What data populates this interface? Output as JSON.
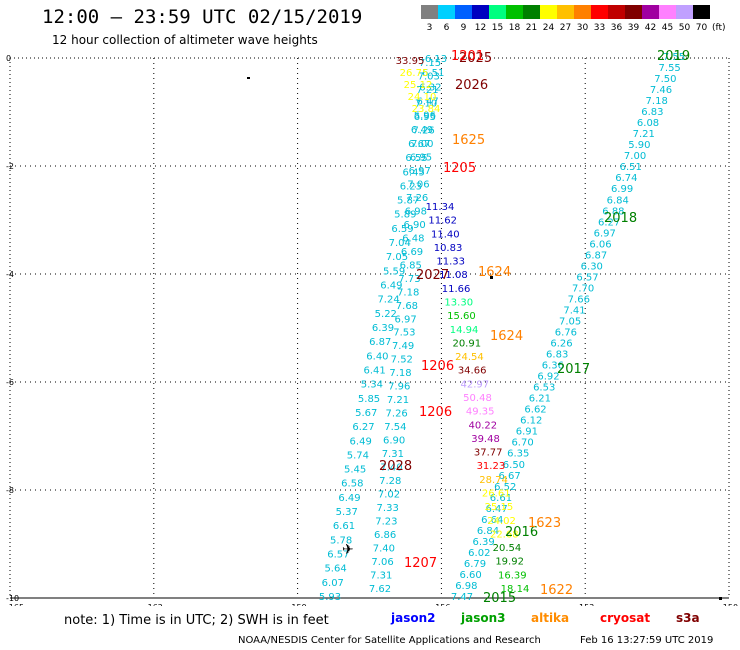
{
  "header": {
    "title": "12:00 — 23:59 UTC 02/15/2019",
    "subtitle": "12 hour collection of altimeter wave heights"
  },
  "legend": {
    "unit": "(ft)",
    "items": [
      {
        "label": "3",
        "color": "#808080"
      },
      {
        "label": "6",
        "color": "#00d0ff"
      },
      {
        "label": "9",
        "color": "#0060ff"
      },
      {
        "label": "12",
        "color": "#0000c0"
      },
      {
        "label": "15",
        "color": "#00ff80"
      },
      {
        "label": "18",
        "color": "#00c000"
      },
      {
        "label": "21",
        "color": "#008000"
      },
      {
        "label": "24",
        "color": "#ffff00"
      },
      {
        "label": "27",
        "color": "#ffc000"
      },
      {
        "label": "30",
        "color": "#ff8000"
      },
      {
        "label": "33",
        "color": "#ff0000"
      },
      {
        "label": "36",
        "color": "#c00000"
      },
      {
        "label": "39",
        "color": "#800000"
      },
      {
        "label": "42",
        "color": "#a000a0"
      },
      {
        "label": "45",
        "color": "#ff80ff"
      },
      {
        "label": "50",
        "color": "#c0a0ff"
      },
      {
        "label": "70",
        "color": "#000000"
      }
    ]
  },
  "axes": {
    "lon_ticks": [
      "-165",
      "-162",
      "-159",
      "-156",
      "-153",
      "-150"
    ],
    "lat_ticks": [
      "0",
      "-2",
      "-4",
      "-6",
      "-8",
      "-10"
    ]
  },
  "tracks": [
    {
      "name": "2019",
      "color": "#008000"
    },
    {
      "name": "2018",
      "color": "#008000"
    },
    {
      "name": "2017",
      "color": "#008000"
    },
    {
      "name": "2016",
      "color": "#008000"
    },
    {
      "name": "2015",
      "color": "#008000"
    },
    {
      "name": "2025",
      "color": "#800000"
    },
    {
      "name": "2026",
      "color": "#800000"
    },
    {
      "name": "2027",
      "color": "#800000"
    },
    {
      "name": "2028",
      "color": "#800000"
    },
    {
      "name": "1201",
      "color": "#ff0000"
    },
    {
      "name": "1205",
      "color": "#ff0000"
    },
    {
      "name": "1206",
      "color": "#ff0000"
    },
    {
      "name": "1206",
      "color": "#ff0000"
    },
    {
      "name": "1207",
      "color": "#ff0000"
    },
    {
      "name": "1625",
      "color": "#ff8000"
    },
    {
      "name": "1624",
      "color": "#ff8000"
    },
    {
      "name": "1624",
      "color": "#ff8000"
    },
    {
      "name": "1623",
      "color": "#ff8000"
    },
    {
      "name": "1622",
      "color": "#ff8000"
    }
  ],
  "readings": {
    "jason2_right": [
      "7.55",
      "7.55",
      "7.50",
      "7.46",
      "7.18",
      "6.83",
      "6.08",
      "7.21",
      "5.90",
      "7.00",
      "6.51",
      "6.74",
      "6.99",
      "6.84",
      "6.88",
      "6.27",
      "6.97",
      "6.06",
      "6.87",
      "6.30",
      "6.57",
      "7.70",
      "7.66",
      "7.41",
      "7.05",
      "6.76",
      "6.26",
      "6.83",
      "6.36",
      "6.92",
      "6.53",
      "6.21",
      "6.62",
      "6.12",
      "6.91",
      "6.70",
      "6.35",
      "6.50",
      "6.67",
      "6.52",
      "6.61",
      "6.47",
      "6.64",
      "6.84",
      "6.39",
      "6.02",
      "6.79",
      "6.60",
      "6.98",
      "7.47"
    ],
    "jason2_left": [
      "5.93",
      "6.07",
      "5.64",
      "6.57",
      "5.78",
      "6.61",
      "5.37",
      "6.49",
      "6.58",
      "5.45",
      "5.74",
      "6.49",
      "6.27",
      "5.67",
      "5.85",
      "5.34",
      "6.41",
      "6.40",
      "6.87",
      "6.39",
      "5.22",
      "7.24",
      "6.49",
      "5.59",
      "7.05",
      "7.04",
      "6.59",
      "5.89",
      "5.87",
      "6.23",
      "6.45",
      "6.55",
      "6.67",
      "6.49",
      "5.96",
      "6.47",
      "6.32",
      "6.51",
      "6.13"
    ],
    "jason2_mid": [
      "7.62",
      "7.31",
      "7.06",
      "7.40",
      "6.86",
      "7.23",
      "7.33",
      "7.02",
      "7.28",
      "7.40",
      "7.31",
      "6.90",
      "7.54",
      "7.26",
      "7.21",
      "7.96",
      "7.18",
      "7.52",
      "7.49",
      "7.53",
      "6.97",
      "7.68",
      "7.18",
      "7.73",
      "6.85",
      "6.69",
      "6.48",
      "6.90",
      "6.98",
      "7.26",
      "7.06",
      "6.97",
      "6.95",
      "7.00",
      "7.26",
      "6.95",
      "7.10",
      "7.21",
      "7.03",
      "7.15"
    ],
    "altika_values": [
      "11.34",
      "11.62",
      "11.40",
      "10.83",
      "11.33",
      "11.08",
      "11.66",
      "13.30",
      "15.60",
      "14.94",
      "20.91",
      "24.54",
      "34.66",
      "42.97",
      "50.48",
      "49.35",
      "40.22",
      "39.48",
      "37.77",
      "31.23",
      "28.74",
      "26.61",
      "25.15",
      "24.02",
      "22.68",
      "20.54",
      "19.92",
      "16.39",
      "18.14"
    ],
    "cryosat_top": [
      "33.95",
      "26.75",
      "25.12",
      "24.10",
      "23.84"
    ]
  },
  "footer": {
    "note": "note: 1) Time is in UTC; 2) SWH is in feet",
    "sources": [
      {
        "label": "jason2",
        "color": "#0000ff"
      },
      {
        "label": "jason3",
        "color": "#00a000"
      },
      {
        "label": "altika",
        "color": "#ff8c00"
      },
      {
        "label": "cryosat",
        "color": "#ff0000"
      },
      {
        "label": "s3a",
        "color": "#800000"
      }
    ],
    "credit": "NOAA/NESDIS Center for Satellite Applications and Research",
    "timestamp": "Feb 16 13:27:59 UTC 2019"
  }
}
